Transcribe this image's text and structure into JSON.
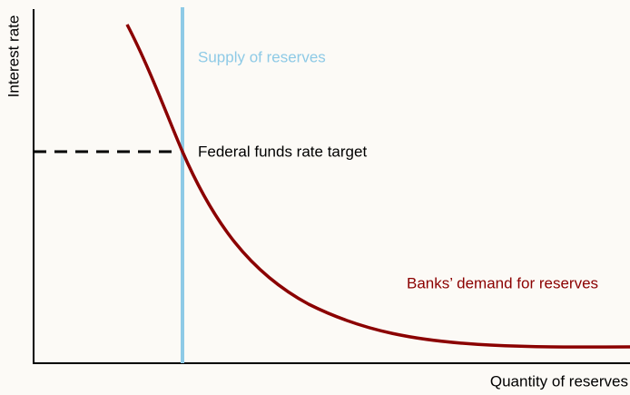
{
  "axes": {
    "y_label": "Interest rate",
    "x_label": "Quantity of reserves"
  },
  "curves": {
    "supply": "Supply of reserves",
    "target": "Federal funds rate target",
    "demand": "Banks’ demand for reserves"
  }
}
